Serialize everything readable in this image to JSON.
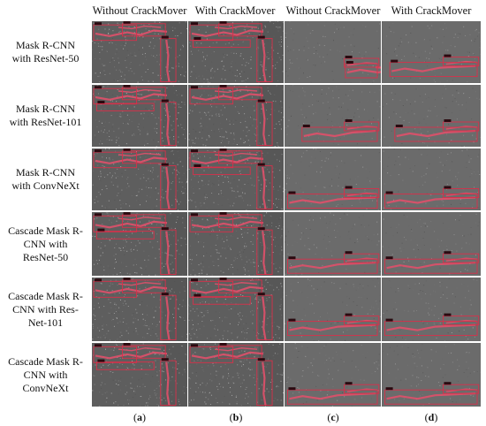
{
  "column_headers": [
    "Without CrackMover",
    "With CrackMover",
    "Without CrackMover",
    "With CrackMover"
  ],
  "rows": [
    {
      "label_lines": [
        "Mask R-CNN",
        "with ResNet-50"
      ]
    },
    {
      "label_lines": [
        "Mask R-CNN",
        "with ResNet-101"
      ]
    },
    {
      "label_lines": [
        "Mask R-CNN",
        "with ConvNeXt"
      ]
    },
    {
      "label_lines": [
        "Cascade Mask R-",
        "CNN with",
        "ResNet-50"
      ]
    },
    {
      "label_lines": [
        "Cascade Mask R-",
        "CNN with Res-",
        "Net-101"
      ]
    },
    {
      "label_lines": [
        "Cascade Mask R-",
        "CNN with",
        "ConvNeXt"
      ]
    }
  ],
  "sublabels": {
    "a": {
      "open": "(",
      "letter": "a",
      "close": ")"
    },
    "b": {
      "open": "(",
      "letter": "b",
      "close": ")"
    },
    "c": {
      "open": "(",
      "letter": "c",
      "close": ")"
    },
    "d": {
      "open": "(",
      "letter": "d",
      "close": ")"
    }
  },
  "colors": {
    "crack_mask": "#e0506a",
    "box": "#d8304a",
    "label_tag": "#2a0a10",
    "pavement_left": "#5e5e5e",
    "pavement_right": "#6b6b6b"
  }
}
